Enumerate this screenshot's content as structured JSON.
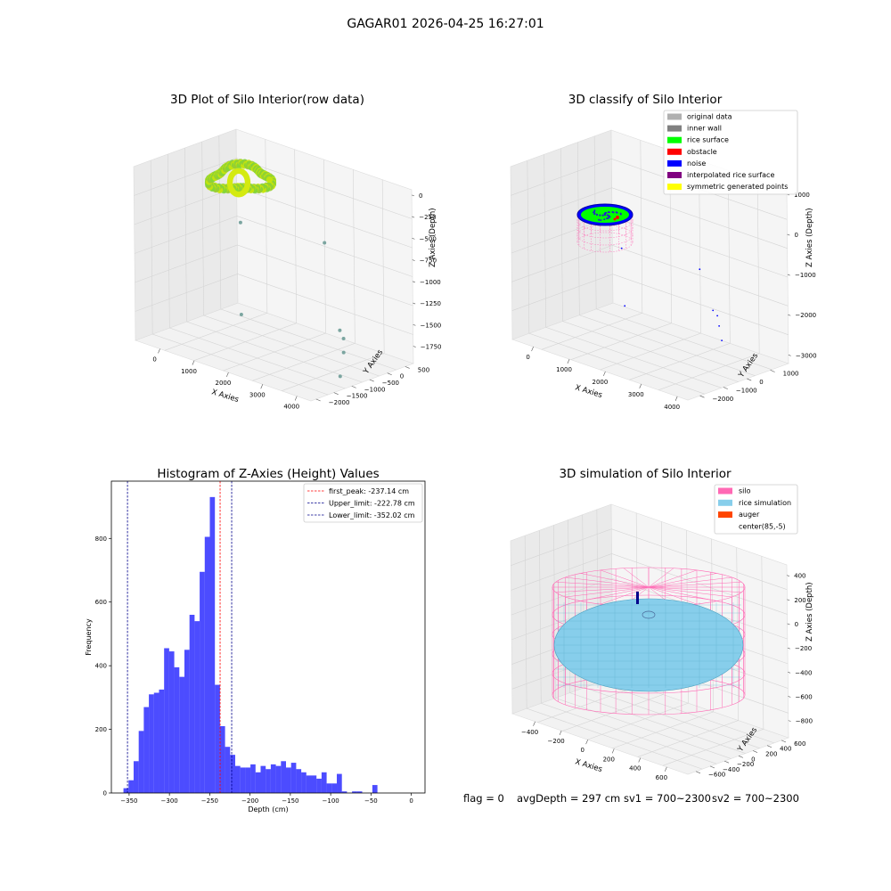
{
  "suptitle": "GAGAR01 2026-04-25 16:27:01",
  "colors": {
    "hist_bar": "#0000ff",
    "peak_line": "#ff0000",
    "limit_line": "#00008b",
    "silo": "#ff69b4",
    "rice_simulation": "#87ceeb",
    "auger": "#ff4500",
    "rice_surface": "#00ff00",
    "noise": "#0000ff",
    "obstacle": "#ff0000",
    "inner_wall": "#808080",
    "original_data": "#b0b0b0",
    "interpolated": "#800080",
    "symmetric": "#ffff00"
  },
  "status": {
    "flag": "flag = 0",
    "avg_depth": "avgDepth = 297 cm",
    "sv1": "sv1 = 700~2300",
    "sv2": "sv2 = 700~2300"
  },
  "chart_data": [
    {
      "type": "scatter",
      "projection": "3d",
      "title": "3D Plot of Silo Interior(row data)",
      "xlabel": "X Axies",
      "ylabel": "Y Axies",
      "zlabel": "Z Axies (Depth)",
      "x_ticks": [
        "0",
        "1000",
        "2000",
        "3000",
        "4000"
      ],
      "y_ticks": [
        "500",
        "0",
        "−500",
        "−1000",
        "−1500",
        "−2000"
      ],
      "z_ticks": [
        "0",
        "−250",
        "−500",
        "−750",
        "−1000",
        "−1250",
        "−1500",
        "−1750"
      ],
      "grid": true,
      "cluster": {
        "x_range": [
          -300,
          400
        ],
        "y_range": [
          -300,
          400
        ],
        "z_range": [
          -300,
          0
        ],
        "colormap": "yellow-green"
      },
      "outliers": [
        {
          "x": 300,
          "y": 0,
          "z": -800
        },
        {
          "x": 2600,
          "y": 0,
          "z": -700
        },
        {
          "x": 500,
          "y": -200,
          "z": -1800
        },
        {
          "x": 3500,
          "y": -500,
          "z": -1500
        },
        {
          "x": 3700,
          "y": -600,
          "z": -1550
        },
        {
          "x": 3900,
          "y": -800,
          "z": -1650
        },
        {
          "x": 4100,
          "y": -1100,
          "z": -1850
        }
      ]
    },
    {
      "type": "scatter",
      "projection": "3d",
      "title": "3D classify of Silo Interior",
      "xlabel": "X Axies",
      "ylabel": "Y Axies",
      "zlabel": "Z Axies (Depth)",
      "x_ticks": [
        "0",
        "1000",
        "2000",
        "3000",
        "4000"
      ],
      "y_ticks": [
        "1000",
        "0",
        "−1000",
        "−2000"
      ],
      "z_ticks": [
        "1000",
        "0",
        "−1000",
        "−2000",
        "−3000"
      ],
      "grid": true,
      "legend": [
        "original data",
        "inner wall",
        "rice surface",
        "obstacle",
        "noise",
        "interpolated rice surface",
        "symmetric generated points"
      ],
      "legend_position": "upper right",
      "noise_points": [
        {
          "x": 400,
          "y": 200,
          "z": -1200
        },
        {
          "x": 2700,
          "y": 100,
          "z": -1000
        },
        {
          "x": 700,
          "y": -100,
          "z": -2500
        },
        {
          "x": 3600,
          "y": -600,
          "z": -1600
        },
        {
          "x": 3800,
          "y": -700,
          "z": -1650
        },
        {
          "x": 4000,
          "y": -900,
          "z": -1800
        },
        {
          "x": 4300,
          "y": -1200,
          "z": -2000
        }
      ]
    },
    {
      "type": "bar",
      "title": "Histogram of Z-Axies (Height) Values",
      "xlabel": "Depth (cm)",
      "ylabel": "Frequency",
      "x_ticks": [
        -350,
        -300,
        -250,
        -200,
        -150,
        -100,
        -50,
        0
      ],
      "y_ticks": [
        0,
        200,
        400,
        600,
        800
      ],
      "xlim": [
        -372,
        17
      ],
      "ylim": [
        0,
        980
      ],
      "bin_start": -357,
      "bin_width": 6.3,
      "values": [
        15,
        40,
        100,
        195,
        270,
        310,
        315,
        325,
        455,
        445,
        395,
        365,
        450,
        560,
        540,
        695,
        805,
        930,
        340,
        210,
        145,
        120,
        85,
        80,
        80,
        90,
        65,
        85,
        75,
        90,
        85,
        100,
        80,
        95,
        75,
        65,
        55,
        55,
        45,
        65,
        30,
        30,
        60,
        5,
        0,
        5,
        5,
        0,
        0,
        25
      ],
      "lines": [
        {
          "name": "first_peak: -237.14 cm",
          "value": -237.14,
          "color": "red"
        },
        {
          "name": "Upper_limit: -222.78 cm",
          "value": -222.78,
          "color": "darkblue"
        },
        {
          "name": "Lower_limit: -352.02 cm",
          "value": -352.02,
          "color": "darkblue"
        }
      ],
      "legend_position": "upper right"
    },
    {
      "type": "surface",
      "projection": "3d",
      "title": "3D simulation of Silo Interior",
      "xlabel": "X Axies",
      "ylabel": "Y Axies",
      "zlabel": "Z Axies (Depth)",
      "x_ticks": [
        "−400",
        "−200",
        "0",
        "200",
        "400",
        "600"
      ],
      "y_ticks": [
        "600",
        "400",
        "200",
        "0",
        "−200",
        "−400",
        "−600"
      ],
      "z_ticks": [
        "400",
        "200",
        "0",
        "−200",
        "−400",
        "−600",
        "−800"
      ],
      "legend": [
        "silo",
        "rice simulation",
        "auger",
        "center(85,-5)"
      ],
      "legend_position": "upper right",
      "silo_radius": 600,
      "silo_top": 0,
      "silo_bottom": -900,
      "rice_level": -297,
      "center": [
        85,
        -5
      ]
    }
  ]
}
